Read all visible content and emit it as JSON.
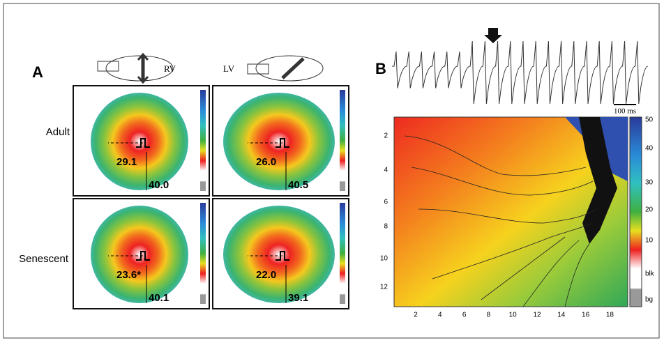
{
  "panel_a": {
    "label": "A",
    "views": [
      "RV",
      "LV"
    ],
    "rows": [
      "Adult",
      "Senescent"
    ],
    "maps": [
      {
        "upper": "29.1",
        "lower": "40.0"
      },
      {
        "upper": "26.0",
        "lower": "40.5"
      },
      {
        "upper": "23.6*",
        "lower": "40.1"
      },
      {
        "upper": "22.0",
        "lower": "39.1"
      }
    ]
  },
  "panel_b": {
    "label": "B",
    "scale_bar": "100 ms",
    "yticks": [
      "2",
      "4",
      "6",
      "8",
      "10",
      "12"
    ],
    "xticks": [
      "2",
      "4",
      "6",
      "8",
      "10",
      "12",
      "14",
      "16",
      "18"
    ],
    "colorbar": [
      "50",
      "40",
      "30",
      "20",
      "10",
      "blk",
      "bg"
    ]
  }
}
